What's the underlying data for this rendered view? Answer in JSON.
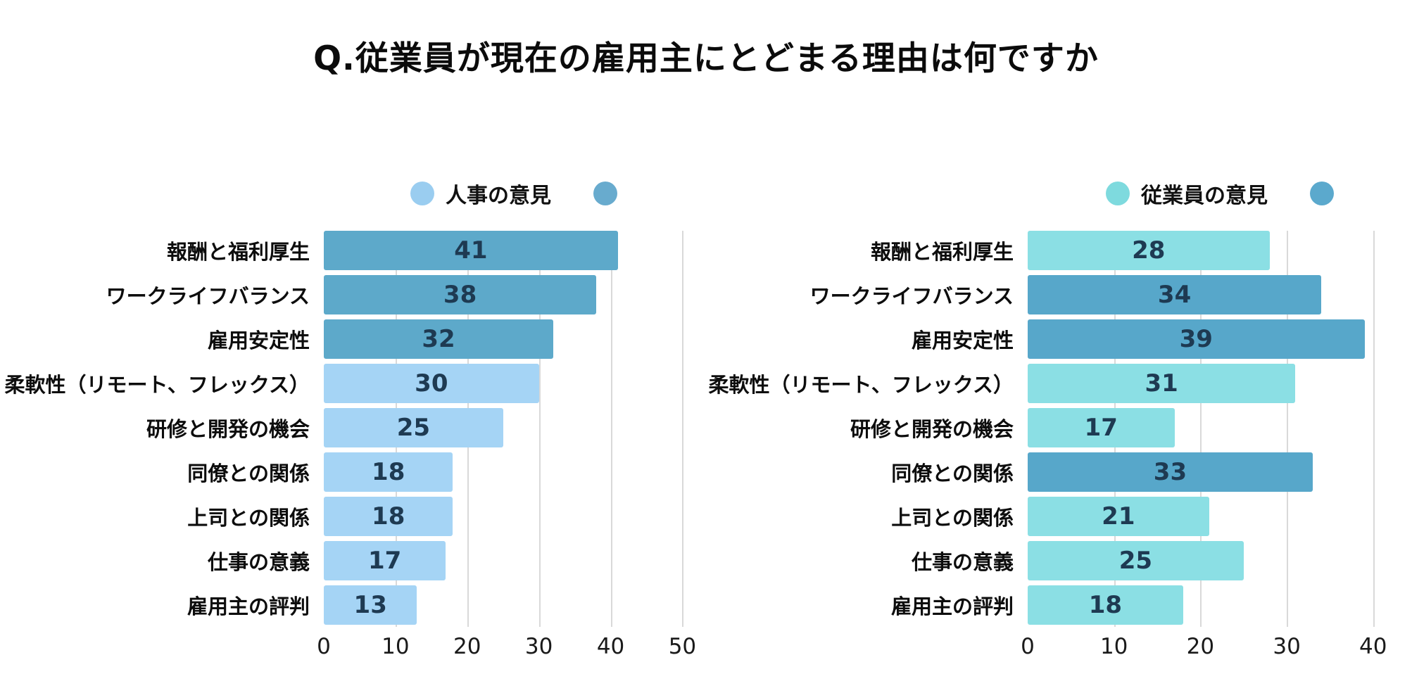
{
  "page": {
    "title": "Q.従業員が現在の雇用主にとどまる理由は何ですか",
    "background": "#ffffff",
    "colors": {
      "value_label": "#1e3a52",
      "gridline": "#d9d9d9",
      "text": "#0d0d0d"
    }
  },
  "chart_data": [
    {
      "type": "bar",
      "orientation": "horizontal",
      "name": "hr-opinion",
      "legend": {
        "position": "top",
        "items": [
          {
            "label": "人事の意見",
            "color": "#9acdf0"
          },
          {
            "label": "",
            "color": "#68abce"
          }
        ]
      },
      "categories": [
        "報酬と福利厚生",
        "ワークライフバランス",
        "雇用安定性",
        "柔軟性（リモート、フレックス）",
        "研修と開発の機会",
        "同僚との関係",
        "上司との関係",
        "仕事の意義",
        "雇用主の評判"
      ],
      "values": [
        41,
        38,
        32,
        30,
        25,
        18,
        18,
        17,
        13
      ],
      "bar_colors": [
        "#5da9ca",
        "#5da9ca",
        "#5da9ca",
        "#a5d4f5",
        "#a5d4f5",
        "#a5d4f5",
        "#a5d4f5",
        "#a5d4f5",
        "#a5d4f5"
      ],
      "palette": {
        "dark": "#5da9ca",
        "light": "#a5d4f5"
      },
      "xticks": [
        0,
        10,
        20,
        30,
        40,
        50
      ],
      "xlim": [
        0,
        53
      ],
      "grid": "vertical",
      "xlabel": "",
      "ylabel": ""
    },
    {
      "type": "bar",
      "orientation": "horizontal",
      "name": "employee-opinion",
      "legend": {
        "position": "top",
        "items": [
          {
            "label": "従業員の意見",
            "color": "#7edade"
          },
          {
            "label": "",
            "color": "#5ba9cd"
          }
        ]
      },
      "categories": [
        "報酬と福利厚生",
        "ワークライフバランス",
        "雇用安定性",
        "柔軟性（リモート、フレックス）",
        "研修と開発の機会",
        "同僚との関係",
        "上司との関係",
        "仕事の意義",
        "雇用主の評判"
      ],
      "values": [
        28,
        34,
        39,
        31,
        17,
        33,
        21,
        25,
        18
      ],
      "bar_colors": [
        "#8bdfe4",
        "#57a7ca",
        "#57a7ca",
        "#8bdfe4",
        "#8bdfe4",
        "#57a7ca",
        "#8bdfe4",
        "#8bdfe4",
        "#8bdfe4"
      ],
      "palette": {
        "dark": "#57a7ca",
        "light": "#8bdfe4"
      },
      "xticks": [
        0,
        10,
        20,
        30,
        40
      ],
      "xlim": [
        0,
        44.5
      ],
      "grid": "vertical",
      "xlabel": "",
      "ylabel": ""
    }
  ]
}
